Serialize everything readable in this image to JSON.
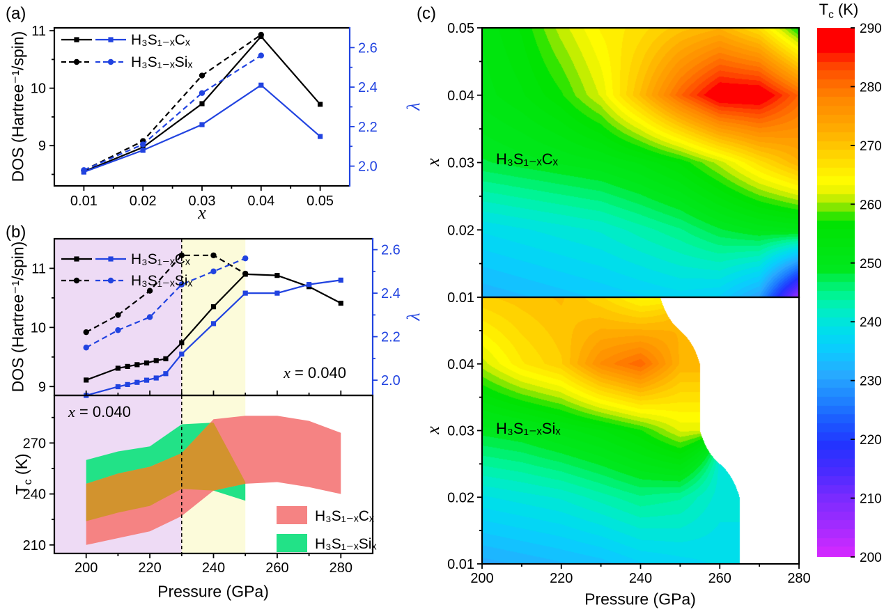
{
  "panel_tags": {
    "a": "(a)",
    "b": "(b)",
    "c": "(c)"
  },
  "formulas": {
    "carbon": "H₃S₁₋ₓCₓ",
    "silicon": "H₃S₁₋ₓSiₓ"
  },
  "labels": {
    "dos_axis": "DOS (Hartree⁻¹/spin)",
    "lambda_axis": "λ",
    "x_var": "x",
    "x_annotation_rest": " = 0.040",
    "pressure_axis": "Pressure (GPa)",
    "tc_main": "T",
    "tc_sub": "c",
    "tc_unit": " (K)"
  },
  "colors": {
    "blue": "#2143e0",
    "black": "#000000",
    "band_carbon": "#f58383",
    "band_silicon": "#22e287",
    "band_overlap": "#d2932e",
    "region_purple": "#eedbf5",
    "region_yellow": "#fcfbda"
  },
  "chart_data": {
    "panel_a": {
      "type": "line",
      "xlabel": "x",
      "ylabel_left": "DOS (Hartree⁻¹/spin)",
      "ylabel_right": "λ",
      "xlim": [
        0.005,
        0.055
      ],
      "x_ticks": {
        "values": [
          0.01,
          0.02,
          0.03,
          0.04,
          0.05
        ],
        "labels": [
          "0.01",
          "0.02",
          "0.03",
          "0.04",
          "0.05"
        ]
      },
      "x_minor": [
        0.015,
        0.025,
        0.035,
        0.045
      ],
      "ylim_left": [
        8.3,
        11.05
      ],
      "y_ticks_left": {
        "values": [
          9,
          10,
          11
        ],
        "labels": [
          "9",
          "10",
          "11"
        ]
      },
      "y_minor_left": [
        8.5,
        9.5,
        10.5
      ],
      "ylim_right": [
        1.9,
        2.7
      ],
      "y_ticks_right": {
        "values": [
          2.0,
          2.2,
          2.4,
          2.6
        ],
        "labels": [
          "2.0",
          "2.2",
          "2.4",
          "2.6"
        ]
      },
      "y_minor_right": [
        2.1,
        2.3,
        2.5
      ],
      "series": [
        {
          "name": "H₃S₁₋ₓCₓ DOS",
          "axis": "left",
          "color": "black",
          "line": "solid",
          "marker": "square",
          "x": [
            0.01,
            0.02,
            0.03,
            0.04,
            0.05
          ],
          "y": [
            8.55,
            8.97,
            9.73,
            10.9,
            9.72
          ]
        },
        {
          "name": "H₃S₁₋ₓSiₓ DOS",
          "axis": "left",
          "color": "black",
          "line": "dashed",
          "marker": "circle",
          "x": [
            0.01,
            0.02,
            0.03,
            0.04
          ],
          "y": [
            8.57,
            9.08,
            10.22,
            10.93
          ]
        },
        {
          "name": "H₃S₁₋ₓCₓ λ",
          "axis": "right",
          "color": "blue",
          "line": "solid",
          "marker": "square",
          "x": [
            0.01,
            0.02,
            0.03,
            0.04,
            0.05
          ],
          "y": [
            1.97,
            2.08,
            2.21,
            2.41,
            2.15
          ]
        },
        {
          "name": "H₃S₁₋ₓSiₓ λ",
          "axis": "right",
          "color": "blue",
          "line": "dashed",
          "marker": "circle",
          "x": [
            0.01,
            0.02,
            0.03,
            0.04
          ],
          "y": [
            1.98,
            2.11,
            2.37,
            2.56
          ]
        }
      ]
    },
    "panel_b_dos": {
      "type": "line",
      "xlabel": "Pressure (GPa)",
      "ylabel_left": "DOS (Hartree⁻¹/spin)",
      "ylabel_right": "λ",
      "annotation": "x = 0.040",
      "xlim": [
        190,
        290
      ],
      "x_ticks": {
        "values": [
          200,
          220,
          240,
          260,
          280
        ],
        "labels": [
          "200",
          "220",
          "240",
          "260",
          "280"
        ]
      },
      "x_minor": [
        210,
        230,
        250,
        270
      ],
      "ylim_left": [
        8.85,
        11.5
      ],
      "y_ticks_left": {
        "values": [
          9,
          10,
          11
        ],
        "labels": [
          "9",
          "10",
          "11"
        ]
      },
      "y_minor_left": [
        9.5,
        10.5
      ],
      "ylim_right": [
        1.93,
        2.65
      ],
      "y_ticks_right": {
        "values": [
          2.0,
          2.2,
          2.4,
          2.6
        ],
        "labels": [
          "2.0",
          "2.2",
          "2.4",
          "2.6"
        ]
      },
      "y_minor_right": [
        2.1,
        2.3,
        2.5
      ],
      "series": [
        {
          "name": "H₃S₁₋ₓCₓ DOS",
          "axis": "left",
          "color": "black",
          "line": "solid",
          "marker": "square",
          "x": [
            200,
            210,
            213,
            216,
            219,
            222,
            225,
            230,
            240,
            250,
            260,
            270,
            280
          ],
          "y": [
            9.11,
            9.31,
            9.34,
            9.37,
            9.4,
            9.44,
            9.47,
            9.74,
            10.35,
            10.9,
            10.88,
            10.69,
            10.41
          ]
        },
        {
          "name": "H₃S₁₋ₓSiₓ DOS",
          "axis": "left",
          "color": "black",
          "line": "dashed",
          "marker": "circle",
          "x": [
            200,
            210,
            220,
            230,
            240,
            250
          ],
          "y": [
            9.92,
            10.21,
            10.62,
            11.22,
            11.22,
            10.91
          ]
        },
        {
          "name": "H₃S₁₋ₓCₓ λ",
          "axis": "right",
          "color": "blue",
          "line": "solid",
          "marker": "square",
          "x": [
            200,
            210,
            213,
            216,
            219,
            222,
            225,
            230,
            240,
            250,
            260,
            270,
            280
          ],
          "y": [
            1.93,
            1.97,
            1.98,
            1.99,
            2.0,
            2.01,
            2.03,
            2.12,
            2.26,
            2.4,
            2.4,
            2.44,
            2.46
          ]
        },
        {
          "name": "H₃S₁₋ₓSiₓ λ",
          "axis": "right",
          "color": "blue",
          "line": "dashed",
          "marker": "circle",
          "x": [
            200,
            210,
            220,
            230,
            240,
            250
          ],
          "y": [
            2.15,
            2.23,
            2.29,
            2.44,
            2.5,
            2.56
          ]
        }
      ]
    },
    "panel_b_tc": {
      "type": "band",
      "xlabel": "Pressure (GPa)",
      "ylabel": "Tc (K)",
      "annotation": "x = 0.040",
      "xlim": [
        190,
        290
      ],
      "x_ticks": {
        "values": [
          200,
          220,
          240,
          260,
          280
        ],
        "labels": [
          "200",
          "220",
          "240",
          "260",
          "280"
        ]
      },
      "x_minor": [
        210,
        230,
        250,
        270
      ],
      "ylim": [
        205,
        298
      ],
      "y_ticks": {
        "values": [
          210,
          240,
          270
        ],
        "labels": [
          "210",
          "240",
          "270"
        ]
      },
      "y_minor": [
        225,
        255,
        285
      ],
      "dashed_line_x": 230,
      "regions": [
        {
          "from": 190,
          "to": 230,
          "color_key": "region_purple"
        },
        {
          "from": 230,
          "to": 250,
          "color_key": "region_yellow"
        }
      ],
      "bands": [
        {
          "name": "H₃S₁₋ₓCₓ",
          "color_key": "band_carbon",
          "P": [
            200,
            210,
            220,
            230,
            240,
            250,
            260,
            270,
            280
          ],
          "lower": [
            210,
            214,
            218,
            227,
            242,
            246,
            247,
            244,
            240
          ],
          "upper": [
            246,
            252,
            256,
            264,
            284,
            286,
            286,
            283,
            276
          ]
        },
        {
          "name": "H₃S₁₋ₓSiₓ",
          "color_key": "band_silicon",
          "P": [
            200,
            210,
            220,
            230,
            240,
            250
          ],
          "lower": [
            224,
            229,
            233,
            243,
            242,
            236
          ],
          "upper": [
            260,
            265,
            268,
            281,
            282,
            247
          ]
        }
      ],
      "overlap_color_key": "band_overlap"
    },
    "panel_c_carbon": {
      "type": "heatmap",
      "label": "H₃S₁₋ₓCₓ",
      "xlabel": "Pressure (GPa)",
      "ylabel": "x",
      "pressure": [
        200,
        210,
        220,
        230,
        240,
        250,
        260,
        270,
        280
      ],
      "x": [
        0.01,
        0.02,
        0.03,
        0.04,
        0.05
      ],
      "y_ticks": {
        "values": [
          0.01,
          0.02,
          0.03,
          0.04,
          0.05
        ],
        "labels": [
          "0.01",
          "0.02",
          "0.03",
          "0.04",
          "0.05"
        ]
      },
      "tc": [
        [
          232,
          233,
          234,
          235,
          236,
          237,
          236,
          230,
          206
        ],
        [
          238,
          239,
          240,
          241,
          243,
          245,
          248,
          250,
          251
        ],
        [
          248,
          249,
          250,
          251,
          253,
          256,
          261,
          267,
          272
        ],
        [
          252,
          254,
          257,
          262,
          271,
          281,
          289,
          289,
          281
        ],
        [
          253,
          256,
          261,
          265,
          267,
          270,
          272,
          267,
          256
        ]
      ]
    },
    "panel_c_silicon": {
      "type": "heatmap",
      "label": "H₃S₁₋ₓSiₓ",
      "xlabel": "Pressure (GPa)",
      "ylabel": "x",
      "pressure": [
        200,
        210,
        220,
        230,
        240,
        250,
        260,
        270,
        280
      ],
      "x": [
        0.01,
        0.02,
        0.03,
        0.04,
        0.05
      ],
      "y_ticks": {
        "values": [
          0.01,
          0.02,
          0.03,
          0.04
        ],
        "labels": [
          "0.01",
          "0.02",
          "0.03",
          "0.04"
        ]
      },
      "tc": [
        [
          231,
          232,
          233,
          234,
          236,
          237,
          238,
          null,
          null
        ],
        [
          239,
          240,
          241,
          243,
          245,
          244,
          240,
          null,
          null
        ],
        [
          249,
          250,
          252,
          254,
          257,
          262,
          null,
          null,
          null
        ],
        [
          261,
          266,
          269,
          277,
          281,
          272,
          null,
          null,
          null
        ],
        [
          269,
          270,
          271,
          268,
          264,
          null,
          null,
          null,
          null
        ]
      ]
    },
    "colorbar": {
      "title": "Tc (K)",
      "range": [
        200,
        290
      ],
      "ticks": [
        290,
        280,
        270,
        260,
        250,
        240,
        230,
        220,
        210,
        200
      ],
      "quantize_step": 1.5,
      "colormap": [
        [
          200,
          "#d928ff"
        ],
        [
          205,
          "#a42bff"
        ],
        [
          210,
          "#7a2bff"
        ],
        [
          215,
          "#452bff"
        ],
        [
          219,
          "#2333ff"
        ],
        [
          223,
          "#1b5aff"
        ],
        [
          227,
          "#1f85ff"
        ],
        [
          231,
          "#27aaff"
        ],
        [
          235,
          "#0ccaff"
        ],
        [
          238,
          "#00dcf0"
        ],
        [
          241,
          "#00ead0"
        ],
        [
          244,
          "#00f5a0"
        ],
        [
          247,
          "#00ef5a"
        ],
        [
          249,
          "#00e81e"
        ],
        [
          257,
          "#00e300"
        ],
        [
          258.5,
          "#4ae600"
        ],
        [
          260,
          "#9fe800"
        ],
        [
          262,
          "#e8f300"
        ],
        [
          264,
          "#fffb00"
        ],
        [
          266,
          "#ffe900"
        ],
        [
          269,
          "#ffcf00"
        ],
        [
          272,
          "#ffb200"
        ],
        [
          275,
          "#ff9b00"
        ],
        [
          278,
          "#ff8600"
        ],
        [
          281,
          "#ff6600"
        ],
        [
          283.5,
          "#ff4400"
        ],
        [
          285.5,
          "#ff1a00"
        ],
        [
          286.5,
          "#ff0000"
        ],
        [
          290,
          "#ff0000"
        ]
      ]
    }
  }
}
